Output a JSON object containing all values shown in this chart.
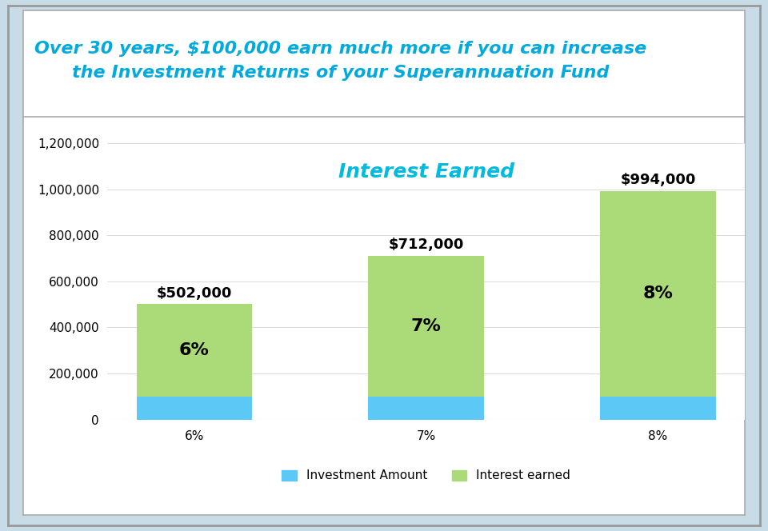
{
  "categories": [
    "6%",
    "7%",
    "8%"
  ],
  "investment_amount": [
    100000,
    100000,
    100000
  ],
  "interest_earned": [
    402000,
    612000,
    894000
  ],
  "total_labels": [
    "$502,000",
    "$712,000",
    "$994,000"
  ],
  "pct_labels": [
    "6%",
    "7%",
    "8%"
  ],
  "investment_color": "#5BC8F5",
  "interest_color": "#AADB78",
  "chart_title_line1": "Over 30 years, $100,000 earn much more if you can increase",
  "chart_title_line2": "the Investment Returns of your Superannuation Fund",
  "chart_subtitle": "Interest Earned",
  "ylim": [
    0,
    1200000
  ],
  "ytick_step": 200000,
  "outer_bg": "#C8DCE8",
  "title_bg": "#FFFFFF",
  "inner_bg": "#FFFFFF",
  "outer_border_color": "#999999",
  "inner_border_color": "#AAAAAA",
  "title_color": "#00AADD",
  "subtitle_color": "#00BBDD",
  "legend_investment": "Investment Amount",
  "legend_interest": "Interest earned",
  "bar_width": 0.5,
  "total_label_fontsize": 13,
  "pct_label_fontsize": 16,
  "subtitle_fontsize": 18,
  "title_fontsize": 16,
  "tick_fontsize": 11,
  "xtick_fontsize": 11
}
